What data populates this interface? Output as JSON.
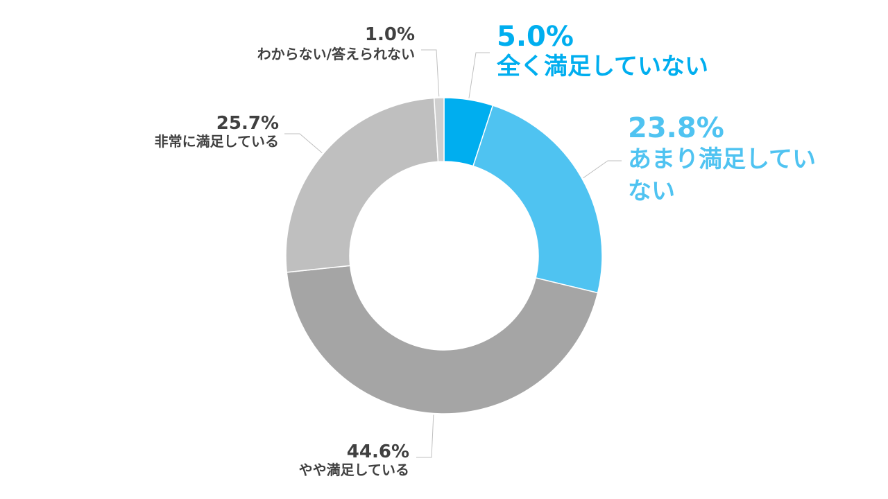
{
  "chart_data": {
    "type": "pie",
    "donut": true,
    "categories": [
      "全く満足していない",
      "あまり満足していない",
      "やや満足している",
      "非常に満足している",
      "わからない/答えられない"
    ],
    "values": [
      5.0,
      23.8,
      44.6,
      25.7,
      1.0
    ],
    "value_labels": [
      "5.0%",
      "23.8%",
      "44.6%",
      "25.7%",
      "1.0%"
    ],
    "colors": [
      "#00aeef",
      "#4fc3f1",
      "#a5a5a5",
      "#bfbfbf",
      "#cfcfcf"
    ],
    "label_colors": [
      "#00aeef",
      "#4fc3f1",
      "#404040",
      "#404040",
      "#404040"
    ],
    "category_label_lines": [
      [
        "全く満足していない"
      ],
      [
        "あまり満足してい",
        "ない"
      ],
      [
        "やや満足している"
      ],
      [
        "非常に満足している"
      ],
      [
        "わからない/答えられない"
      ]
    ],
    "start_angle": "12 o'clock",
    "direction": "clockwise"
  }
}
